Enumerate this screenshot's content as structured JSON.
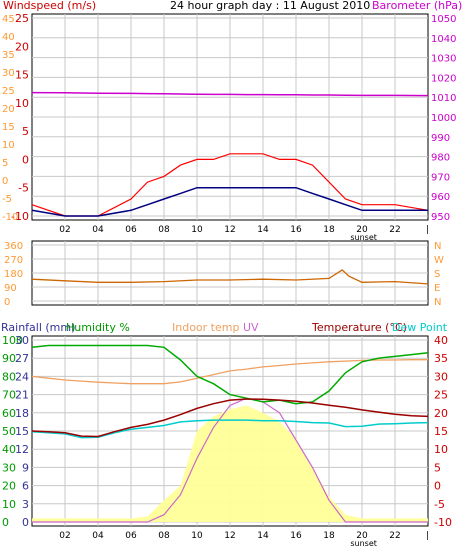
{
  "header": {
    "title": "24 hour graph day : 11 August 2010",
    "title_suffix": "--"
  },
  "colors": {
    "wind": "#cc0000",
    "gust": "#ff0000",
    "avg_wind": "#000080",
    "barometer": "#cc00cc",
    "direction": "#cc6600",
    "rainfall": "#333399",
    "humidity": "#00aa00",
    "uv": "#cc66cc",
    "solar": "#ffff99",
    "indoor_temp": "#f0a060",
    "temperature": "#990000",
    "dew_point": "#00cccc",
    "axis_wind": "#ff9933",
    "axis_rain": "#333399",
    "axis_humidity": "#009900",
    "axis_uv": "#9933cc",
    "axis_temp": "#cc0000",
    "grid": "#c8c8c8"
  },
  "x_axis": {
    "ticks": [
      "02",
      "04",
      "06",
      "08",
      "10",
      "12",
      "14",
      "16",
      "18",
      "20",
      "22"
    ],
    "sunset_label": "sunset"
  },
  "chart_data": [
    {
      "type": "line",
      "id": "wind-barometer",
      "left_label": "Windspeed (m/s)",
      "right_label": "Barometer (hPa)",
      "left_ticks_primary": [
        "25",
        "20",
        "15",
        "10",
        "5",
        "0",
        "-5",
        "-10"
      ],
      "left_ticks_secondary": [
        "45",
        "40",
        "35",
        "30",
        "25",
        "20",
        "15",
        "10",
        "5",
        "0",
        "-5",
        "-10"
      ],
      "right_ticks": [
        "1050",
        "1040",
        "1030",
        "1020",
        "1010",
        "1000",
        "990",
        "980",
        "970",
        "960",
        "950"
      ],
      "ylim_wind": [
        -10,
        25
      ],
      "ylim_barometer": [
        950,
        1050
      ],
      "x": [
        0,
        2,
        4,
        6,
        7,
        8,
        9,
        10,
        11,
        12,
        13,
        14,
        15,
        16,
        17,
        18,
        19,
        20,
        22,
        24
      ],
      "series": [
        {
          "key": "barometer",
          "values": [
            1012.3,
            1012.2,
            1012.0,
            1011.9,
            1011.8,
            1011.7,
            1011.6,
            1011.5,
            1011.4,
            1011.4,
            1011.3,
            1011.3,
            1011.2,
            1011.2,
            1011.1,
            1011.1,
            1011.0,
            1010.9,
            1010.9,
            1010.8
          ],
          "axis": "right"
        },
        {
          "key": "wind_gust",
          "values": [
            -8,
            -10,
            -10,
            -7,
            -4,
            -3,
            -1,
            0,
            0,
            1,
            1,
            1,
            0,
            0,
            -1,
            -4,
            -7,
            -8,
            -8,
            -9
          ],
          "axis": "left"
        },
        {
          "key": "wind_avg",
          "values": [
            -9,
            -10,
            -10,
            -9,
            -8,
            -7,
            -6,
            -5,
            -5,
            -5,
            -5,
            -5,
            -5,
            -5,
            -6,
            -7,
            -8,
            -9,
            -9,
            -9
          ],
          "axis": "left"
        }
      ]
    },
    {
      "type": "line",
      "id": "wind-direction",
      "left_ticks": [
        "360",
        "270",
        "180",
        "90",
        "0"
      ],
      "right_ticks": [
        "N",
        "W",
        "S",
        "E",
        "N"
      ],
      "ylim": [
        0,
        360
      ],
      "x": [
        0,
        2,
        4,
        6,
        8,
        10,
        12,
        14,
        16,
        18,
        18.8,
        19.2,
        20,
        22,
        24
      ],
      "series": [
        {
          "key": "direction",
          "values": [
            140,
            130,
            120,
            120,
            125,
            135,
            135,
            140,
            135,
            145,
            200,
            160,
            120,
            125,
            110
          ]
        }
      ]
    },
    {
      "type": "line",
      "id": "humidity-temperature",
      "labels": {
        "rainfall": "Rainfall (mm)",
        "humidity": "Humidity %",
        "indoor_temp": "Indoor temp",
        "uv": "UV",
        "temperature": "Temperature (°C)",
        "dew_point": "Dew Point"
      },
      "left_ticks_humidity": [
        "100",
        "90",
        "80",
        "70",
        "60",
        "50",
        "40",
        "30",
        "20",
        "10",
        "0"
      ],
      "left_ticks_rain": [
        "30",
        "27",
        "24",
        "21",
        "18",
        "15",
        "12",
        "9",
        "6",
        "3",
        "0"
      ],
      "right_ticks": [
        "40",
        "35",
        "30",
        "25",
        "20",
        "15",
        "10",
        "5",
        "0",
        "-5",
        "-10"
      ],
      "ylim_humidity": [
        0,
        100
      ],
      "ylim_temperature": [
        -10,
        40
      ],
      "x": [
        0,
        1,
        2,
        3,
        4,
        5,
        6,
        7,
        8,
        9,
        10,
        11,
        12,
        13,
        14,
        15,
        16,
        17,
        18,
        19,
        20,
        21,
        22,
        23,
        24
      ],
      "series": [
        {
          "key": "humidity",
          "values": [
            96,
            97,
            97,
            97,
            97,
            97,
            97,
            97,
            96,
            89,
            80,
            76,
            70,
            68,
            66,
            67,
            65,
            66,
            72,
            82,
            88,
            90,
            91,
            92,
            93
          ],
          "axis": "humidity"
        },
        {
          "key": "indoor_temp",
          "values": [
            30,
            29.5,
            29,
            28.7,
            28.4,
            28.2,
            28,
            28,
            28,
            28.5,
            29.5,
            30.5,
            31.5,
            32,
            32.6,
            33,
            33.4,
            33.7,
            34,
            34.2,
            34.4,
            34.5,
            34.5,
            34.6,
            34.6
          ],
          "axis": "temperature"
        },
        {
          "key": "temperature",
          "values": [
            15,
            14.8,
            14.5,
            13.6,
            13.5,
            14.8,
            16,
            16.8,
            18,
            19.5,
            21.2,
            22.5,
            23.5,
            23.8,
            23.7,
            23.5,
            23.2,
            22.7,
            22.1,
            21.5,
            20.8,
            20.2,
            19.6,
            19.2,
            19
          ],
          "axis": "temperature"
        },
        {
          "key": "dew_point",
          "values": [
            14.8,
            14.5,
            14.2,
            13.2,
            13.3,
            14.5,
            15.5,
            16,
            16.5,
            17.5,
            17.8,
            18,
            18,
            18,
            17.8,
            17.8,
            17.6,
            17.3,
            17.2,
            16.2,
            16.3,
            16.9,
            17,
            17.2,
            17.3
          ],
          "axis": "temperature"
        },
        {
          "key": "uv",
          "values": [
            0,
            0,
            0,
            0,
            0,
            0,
            0,
            0,
            4,
            15,
            35,
            52,
            64,
            68,
            66,
            60,
            45,
            30,
            12,
            0,
            0,
            0,
            0,
            0,
            0
          ],
          "axis": "humidity"
        },
        {
          "key": "solar",
          "values": [
            2,
            2,
            2,
            2,
            2,
            2,
            2,
            3,
            12,
            20,
            50,
            58,
            62,
            64,
            60,
            55,
            46,
            30,
            14,
            4,
            2,
            2,
            2,
            2,
            2
          ],
          "axis": "humidity"
        }
      ]
    }
  ]
}
